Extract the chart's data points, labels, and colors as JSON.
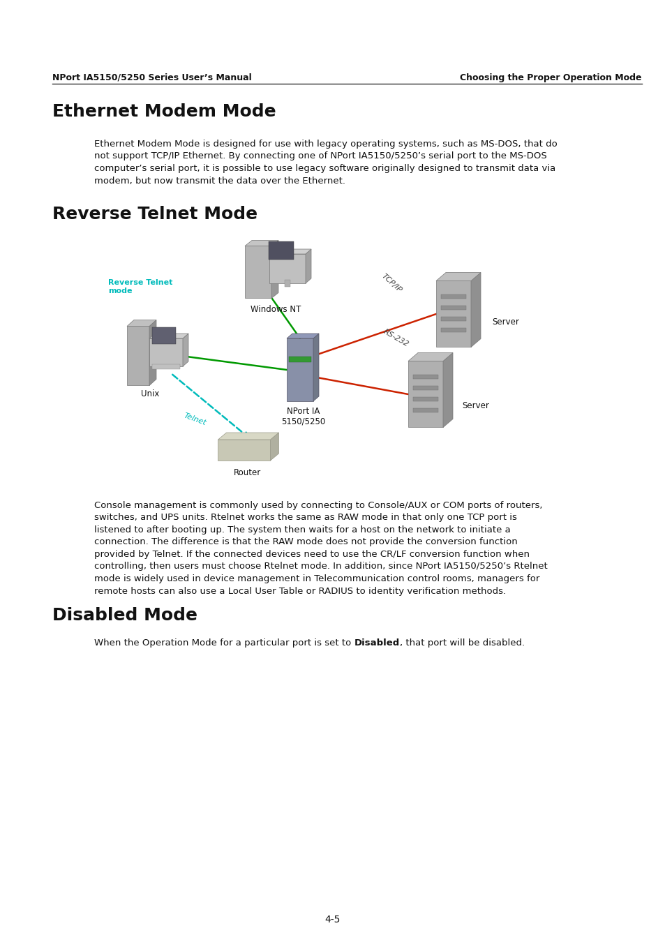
{
  "bg_color": "#ffffff",
  "header_left": "NPort IA5150/5250 Series User’s Manual",
  "header_right": "Choosing the Proper Operation Mode",
  "section1_title": "Ethernet Modem Mode",
  "section1_body": "Ethernet Modem Mode is designed for use with legacy operating systems, such as MS-DOS, that do\nnot support TCP/IP Ethernet. By connecting one of NPort IA5150/5250’s serial port to the MS-DOS\ncomputer’s serial port, it is possible to use legacy software originally designed to transmit data via\nmodem, but now transmit the data over the Ethernet.",
  "section2_title": "Reverse Telnet Mode",
  "section2_body": "Console management is commonly used by connecting to Console/AUX or COM ports of routers,\nswitches, and UPS units. Rtelnet works the same as RAW mode in that only one TCP port is\nlistened to after booting up. The system then waits for a host on the network to initiate a\nconnection. The difference is that the RAW mode does not provide the conversion function\nprovided by Telnet. If the connected devices need to use the CR/LF conversion function when\ncontrolling, then users must choose Rtelnet mode. In addition, since NPort IA5150/5250’s Rtelnet\nmode is widely used in device management in Telecommunication control rooms, managers for\nremote hosts can also use a Local User Table or RADIUS to identity verification methods.",
  "section3_title": "Disabled Mode",
  "section3_pre": "When the Operation Mode for a particular port is set to ",
  "section3_bold": "Disabled",
  "section3_post": ", that port will be disabled.",
  "page_number": "4-5",
  "title_fontsize": 18,
  "header_fontsize": 9,
  "body_fontsize": 9.5,
  "cyan_color": "#00BBBB",
  "green_color": "#009900",
  "red_color": "#CC2200",
  "gray_color": "#aaaaaa",
  "dark_gray": "#888888"
}
